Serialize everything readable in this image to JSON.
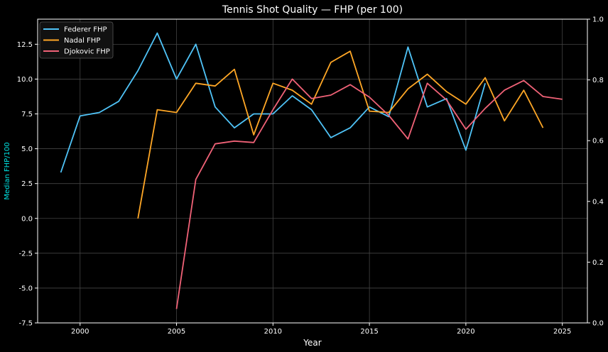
{
  "chart_data": {
    "type": "line",
    "title": "Tennis Shot Quality — FHP (per 100)",
    "xlabel": "Year",
    "ylabel": "Median FHP/100",
    "xlim": [
      1997.8,
      2026.3
    ],
    "ylim": [
      -7.5,
      14.3
    ],
    "xticks": [
      2000,
      2005,
      2010,
      2015,
      2020,
      2025
    ],
    "yticks": [
      -7.5,
      -5.0,
      -2.5,
      0.0,
      2.5,
      5.0,
      7.5,
      10.0,
      12.5
    ],
    "y2lim": [
      0.0,
      1.0
    ],
    "y2ticks": [
      0.0,
      0.2,
      0.4,
      0.6,
      0.8,
      1.0
    ],
    "grid": true,
    "legend_position": "top-left",
    "series": [
      {
        "name": "Federer FHP",
        "color": "#4fc3f7",
        "x": [
          1999,
          2000,
          2001,
          2002,
          2003,
          2004,
          2005,
          2006,
          2007,
          2008,
          2009,
          2010,
          2011,
          2012,
          2013,
          2014,
          2015,
          2016,
          2017,
          2018,
          2019,
          2020,
          2021
        ],
        "y": [
          3.3,
          7.35,
          7.6,
          8.4,
          10.6,
          13.3,
          10.0,
          12.5,
          8.0,
          6.5,
          7.5,
          7.5,
          8.8,
          7.8,
          5.8,
          6.5,
          8.0,
          7.3,
          12.3,
          8.0,
          8.6,
          4.9,
          9.7
        ]
      },
      {
        "name": "Nadal FHP",
        "color": "#ffa726",
        "x": [
          2003,
          2004,
          2005,
          2006,
          2007,
          2008,
          2009,
          2010,
          2011,
          2012,
          2013,
          2014,
          2015,
          2016,
          2017,
          2018,
          2019,
          2020,
          2021,
          2022,
          2023,
          2024
        ],
        "y": [
          0.0,
          7.8,
          7.6,
          9.7,
          9.5,
          10.7,
          6.0,
          9.7,
          9.2,
          8.2,
          11.2,
          12.0,
          7.7,
          7.6,
          9.3,
          10.35,
          9.1,
          8.2,
          10.1,
          7.0,
          9.2,
          6.5
        ]
      },
      {
        "name": "Djokovic FHP",
        "color": "#f06277",
        "x": [
          2005,
          2006,
          2007,
          2008,
          2009,
          2010,
          2011,
          2012,
          2013,
          2014,
          2015,
          2016,
          2017,
          2018,
          2019,
          2020,
          2021,
          2022,
          2023,
          2024,
          2025
        ],
        "y": [
          -6.5,
          2.8,
          5.35,
          5.55,
          5.45,
          7.8,
          10.0,
          8.6,
          8.85,
          9.6,
          8.7,
          7.4,
          5.7,
          9.7,
          8.5,
          6.4,
          7.9,
          9.2,
          9.9,
          8.75,
          8.55
        ]
      }
    ]
  }
}
